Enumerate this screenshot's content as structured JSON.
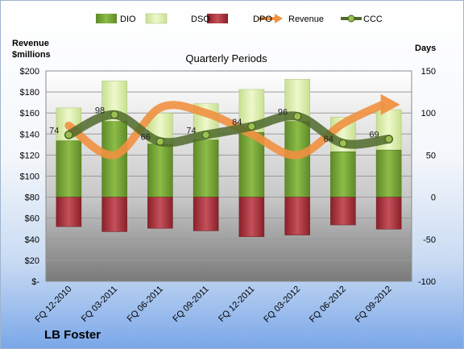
{
  "chart_data": {
    "type": "bar",
    "title": "Quarterly Periods",
    "company": "LB Foster",
    "y_left_label_line1": "Revenue",
    "y_left_label_line2": "$millions",
    "y_right_label": "Days",
    "categories": [
      "FQ 12-2010",
      "FQ 03-2011",
      "FQ 06-2011",
      "FQ 09-2011",
      "FQ 12-2011",
      "FQ 03-2012",
      "FQ 06-2012",
      "FQ 09-2012"
    ],
    "left_axis": {
      "min": 0,
      "max": 200,
      "step": 20,
      "tick_labels": [
        "$-",
        "$20",
        "$40",
        "$60",
        "$80",
        "$100",
        "$120",
        "$140",
        "$160",
        "$180",
        "$200"
      ]
    },
    "right_axis": {
      "min": -100,
      "max": 150,
      "step": 50,
      "tick_labels": [
        "-100",
        "-50",
        "0",
        "50",
        "100",
        "150"
      ]
    },
    "legend": [
      "DIO",
      "DSO",
      "DPO",
      "Revenue",
      "CCC"
    ],
    "series": [
      {
        "name": "DIO",
        "axis": "right",
        "values": [
          67,
          90,
          63,
          68,
          77,
          90,
          54,
          56
        ]
      },
      {
        "name": "DSO",
        "axis": "right",
        "values": [
          106,
          138,
          100,
          111,
          128,
          140,
          95,
          104
        ]
      },
      {
        "name": "DPO",
        "axis": "right",
        "values": [
          -35,
          -41,
          -37,
          -40,
          -47,
          -45,
          -33,
          -38
        ]
      },
      {
        "name": "Revenue",
        "axis": "left",
        "values": [
          148,
          120,
          165,
          160,
          140,
          120,
          150,
          168
        ]
      },
      {
        "name": "CCC",
        "axis": "right",
        "values": [
          74,
          98,
          66,
          74,
          84,
          96,
          64,
          69
        ]
      }
    ],
    "ccc_labels": [
      "74",
      "98",
      "66",
      "74",
      "84",
      "96",
      "64",
      "69"
    ],
    "colors": {
      "DIO": "#7aa83a",
      "DSO": "#d8eca4",
      "DPO": "#a8303a",
      "Revenue": "#f09040",
      "CCC": "#4f6a2a"
    }
  }
}
